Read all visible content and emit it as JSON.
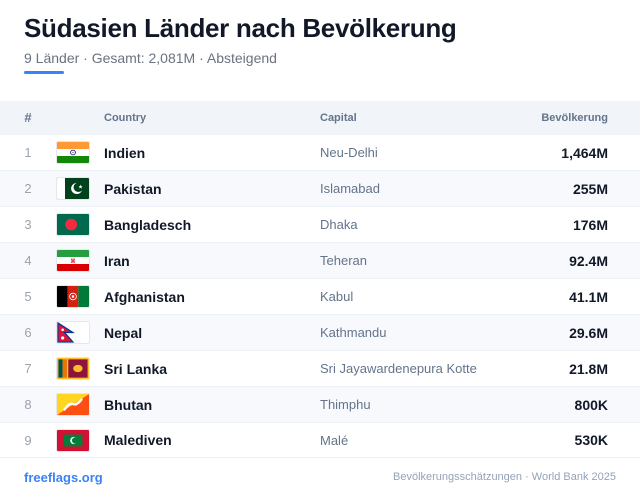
{
  "header": {
    "title": "Südasien Länder nach Bevölkerung",
    "subtitle": "9 Länder · Gesamt: 2,081M · Absteigend",
    "accent_color": "#3b82f6"
  },
  "table": {
    "columns": {
      "rank": "#",
      "country": "Country",
      "capital": "Capital",
      "population": "Bevölkerung"
    },
    "rows": [
      {
        "rank": "1",
        "flag": "india-flag-icon",
        "country": "Indien",
        "capital": "Neu-Delhi",
        "population": "1,464M"
      },
      {
        "rank": "2",
        "flag": "pakistan-flag-icon",
        "country": "Pakistan",
        "capital": "Islamabad",
        "population": "255M"
      },
      {
        "rank": "3",
        "flag": "bangladesh-flag-icon",
        "country": "Bangladesch",
        "capital": "Dhaka",
        "population": "176M"
      },
      {
        "rank": "4",
        "flag": "iran-flag-icon",
        "country": "Iran",
        "capital": "Teheran",
        "population": "92.4M"
      },
      {
        "rank": "5",
        "flag": "afghanistan-flag-icon",
        "country": "Afghanistan",
        "capital": "Kabul",
        "population": "41.1M"
      },
      {
        "rank": "6",
        "flag": "nepal-flag-icon",
        "country": "Nepal",
        "capital": "Kathmandu",
        "population": "29.6M"
      },
      {
        "rank": "7",
        "flag": "sri-lanka-flag-icon",
        "country": "Sri Lanka",
        "capital": "Sri Jayawardenepura Kotte",
        "population": "21.8M"
      },
      {
        "rank": "8",
        "flag": "bhutan-flag-icon",
        "country": "Bhutan",
        "capital": "Thimphu",
        "population": "800K"
      },
      {
        "rank": "9",
        "flag": "maldives-flag-icon",
        "country": "Malediven",
        "capital": "Malé",
        "population": "530K"
      }
    ]
  },
  "footer": {
    "site": "freeflags.org",
    "source": "Bevölkerungsschätzungen · World Bank 2025"
  }
}
